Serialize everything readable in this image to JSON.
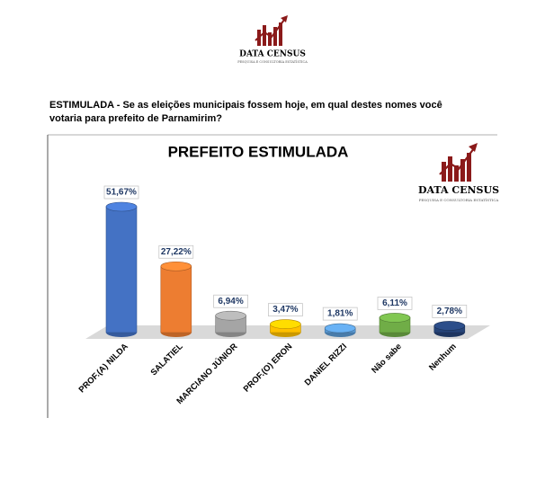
{
  "header": {
    "brand": "DATA CENSUS",
    "tagline": "PESQUISA E CONSULTORIA ESTATÍSTICA"
  },
  "question": [
    "ESTIMULADA - Se as eleições municipais fossem hoje, em qual destes nomes você",
    "votaria para prefeito de Parnamirim?"
  ],
  "chart_data": {
    "type": "bar",
    "title": "PREFEITO ESTIMULADA",
    "brand": "DATA CENSUS",
    "tagline": "PESQUISA E CONSULTORIA ESTATÍSTICA",
    "categories": [
      "PROF.(A) NILDA",
      "SALATIEL",
      "MARCIANO JÚNIOR",
      "PROF.(O) ERON",
      "DANIEL RIZZI",
      "Não sabe",
      "Nenhum"
    ],
    "values": [
      51.67,
      27.22,
      6.94,
      3.47,
      1.81,
      6.11,
      2.78
    ],
    "value_labels": [
      "51,67%",
      "27,22%",
      "6,94%",
      "3,47%",
      "1,81%",
      "6,11%",
      "2,78%"
    ],
    "colors": [
      "#4472c4",
      "#ed7d31",
      "#a5a5a5",
      "#ffc000",
      "#5b9bd5",
      "#70ad47",
      "#264478"
    ]
  }
}
